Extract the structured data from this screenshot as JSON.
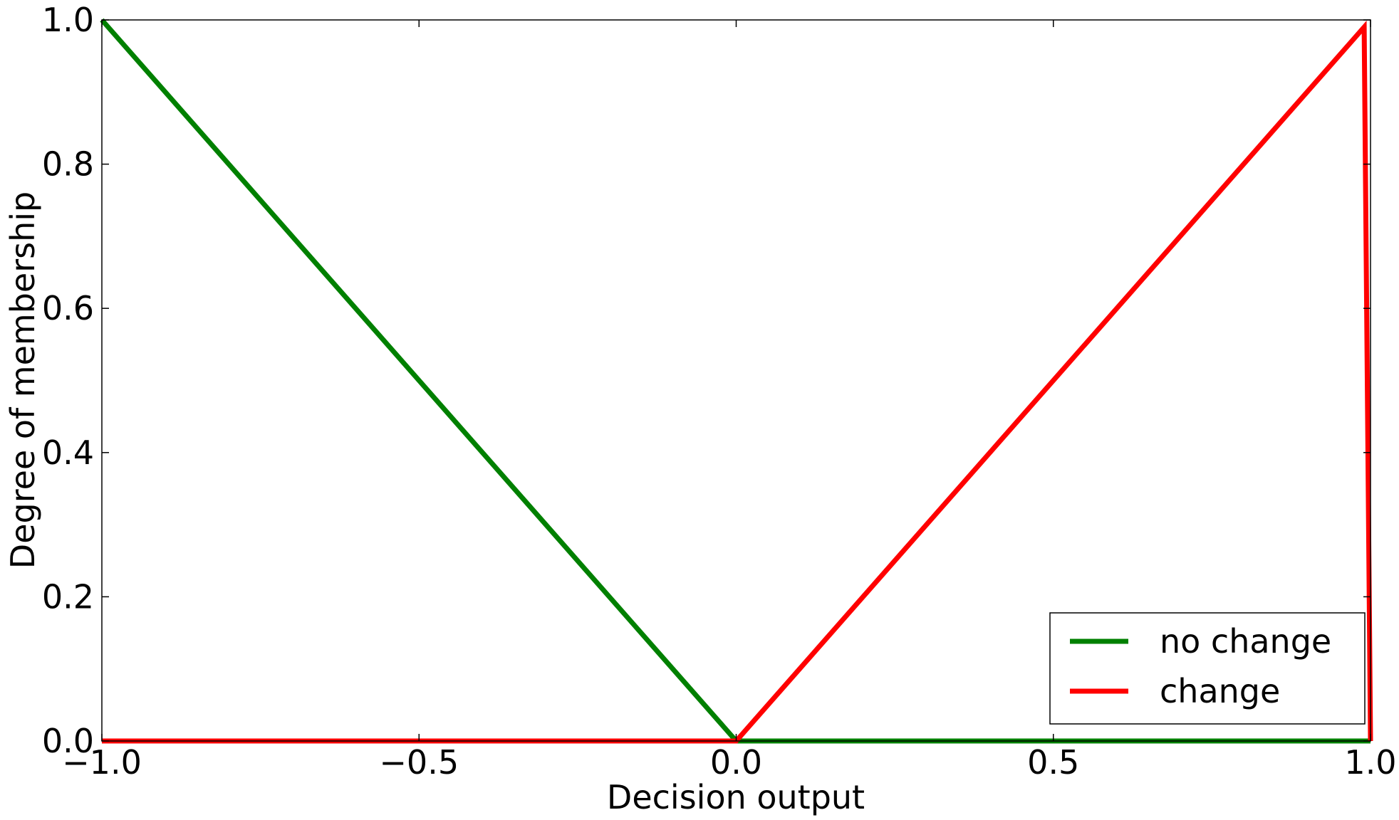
{
  "chart_data": {
    "type": "line",
    "xlabel": "Decision output",
    "ylabel": "Degree of membership",
    "xlim": [
      -1.0,
      1.0
    ],
    "ylim": [
      0.0,
      1.0
    ],
    "xticks": [
      -1.0,
      -0.5,
      0.0,
      0.5,
      1.0
    ],
    "xtick_labels": [
      "−1.0",
      "−0.5",
      "0.0",
      "0.5",
      "1.0"
    ],
    "yticks": [
      0.0,
      0.2,
      0.4,
      0.6,
      0.8,
      1.0
    ],
    "ytick_labels": [
      "0.0",
      "0.2",
      "0.4",
      "0.6",
      "0.8",
      "1.0"
    ],
    "grid": false,
    "legend_position": "lower-right",
    "series": [
      {
        "name": "no change",
        "color": "#008000",
        "x": [
          -1.0,
          0.0,
          1.0
        ],
        "y": [
          1.0,
          0.0,
          0.0
        ]
      },
      {
        "name": "change",
        "color": "#ff0000",
        "x": [
          -1.0,
          0.0,
          0.99,
          1.0
        ],
        "y": [
          0.0,
          0.0,
          0.99,
          0.0
        ]
      }
    ]
  }
}
